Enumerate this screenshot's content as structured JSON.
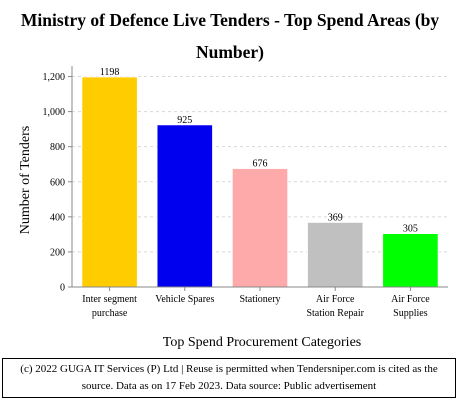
{
  "colors": {
    "bar_fill": [
      "#ffcc00",
      "#0000ee",
      "#ffaaaa",
      "#c0c0c0",
      "#00ff00"
    ],
    "bar_stroke": "#ffffff",
    "grid": "#d8d8d8",
    "axis": "#888888"
  },
  "chart_data": {
    "type": "bar",
    "title": "Ministry of Defence  Live Tenders - Top Spend Areas (by Number)",
    "xlabel": "Top Spend Procurement Categories",
    "ylabel": "Number of Tenders",
    "categories": [
      [
        "Inter segment",
        "purchase"
      ],
      [
        "Vehicle Spares"
      ],
      [
        "Stationery"
      ],
      [
        "Air Force",
        "Station Repair"
      ],
      [
        "Air Force",
        "Supplies"
      ]
    ],
    "values": [
      1198,
      925,
      676,
      369,
      305
    ],
    "value_labels": [
      "1198",
      "925",
      "676",
      "369",
      "305"
    ],
    "ylim": [
      0,
      1260
    ],
    "yticks": [
      0,
      200,
      400,
      600,
      800,
      1000,
      1200
    ],
    "ytick_labels": [
      "0",
      "200",
      "400",
      "600",
      "800",
      "1,000",
      "1,200"
    ],
    "grid": true
  },
  "footer": {
    "line1": "(c) 2022 GUGA IT Services (P) Ltd | Reuse is permitted when Tendersniper.com is cited as the",
    "line2": "source. Data as on 17 Feb 2023. Data source: Public advertisement"
  }
}
